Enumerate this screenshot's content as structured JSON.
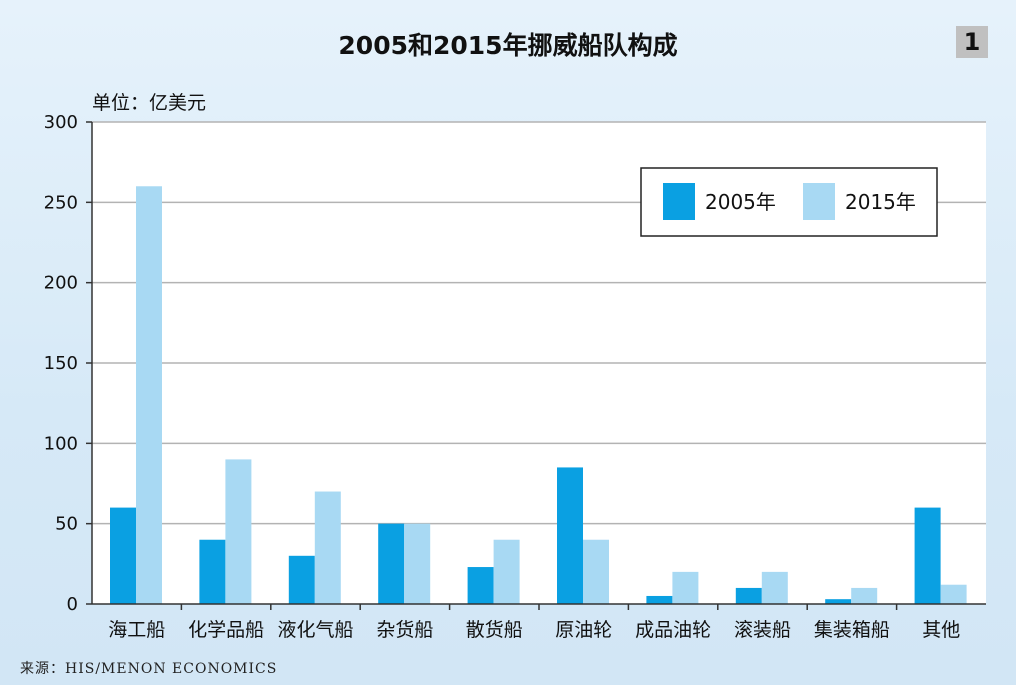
{
  "header": {
    "page_number": "1"
  },
  "source_note": "来源：HIS/MENON ECONOMICS",
  "chart_data": {
    "type": "bar",
    "title": "2005和2015年挪威船队构成",
    "ylabel": "单位：亿美元",
    "xlabel": "",
    "ylim": [
      0,
      300
    ],
    "yticks": [
      0,
      50,
      100,
      150,
      200,
      250,
      300
    ],
    "grid": true,
    "legend_position": "top-right",
    "categories": [
      "海工船",
      "化学品船",
      "液化气船",
      "杂货船",
      "散货船",
      "原油轮",
      "成品油轮",
      "滚装船",
      "集装箱船",
      "其他"
    ],
    "series": [
      {
        "name": "2005年",
        "color": "#0aa0e2",
        "values": [
          60,
          40,
          30,
          50,
          23,
          85,
          5,
          10,
          3,
          60
        ]
      },
      {
        "name": "2015年",
        "color": "#a8d9f3",
        "values": [
          260,
          90,
          70,
          50,
          40,
          40,
          20,
          20,
          10,
          12
        ]
      }
    ]
  }
}
